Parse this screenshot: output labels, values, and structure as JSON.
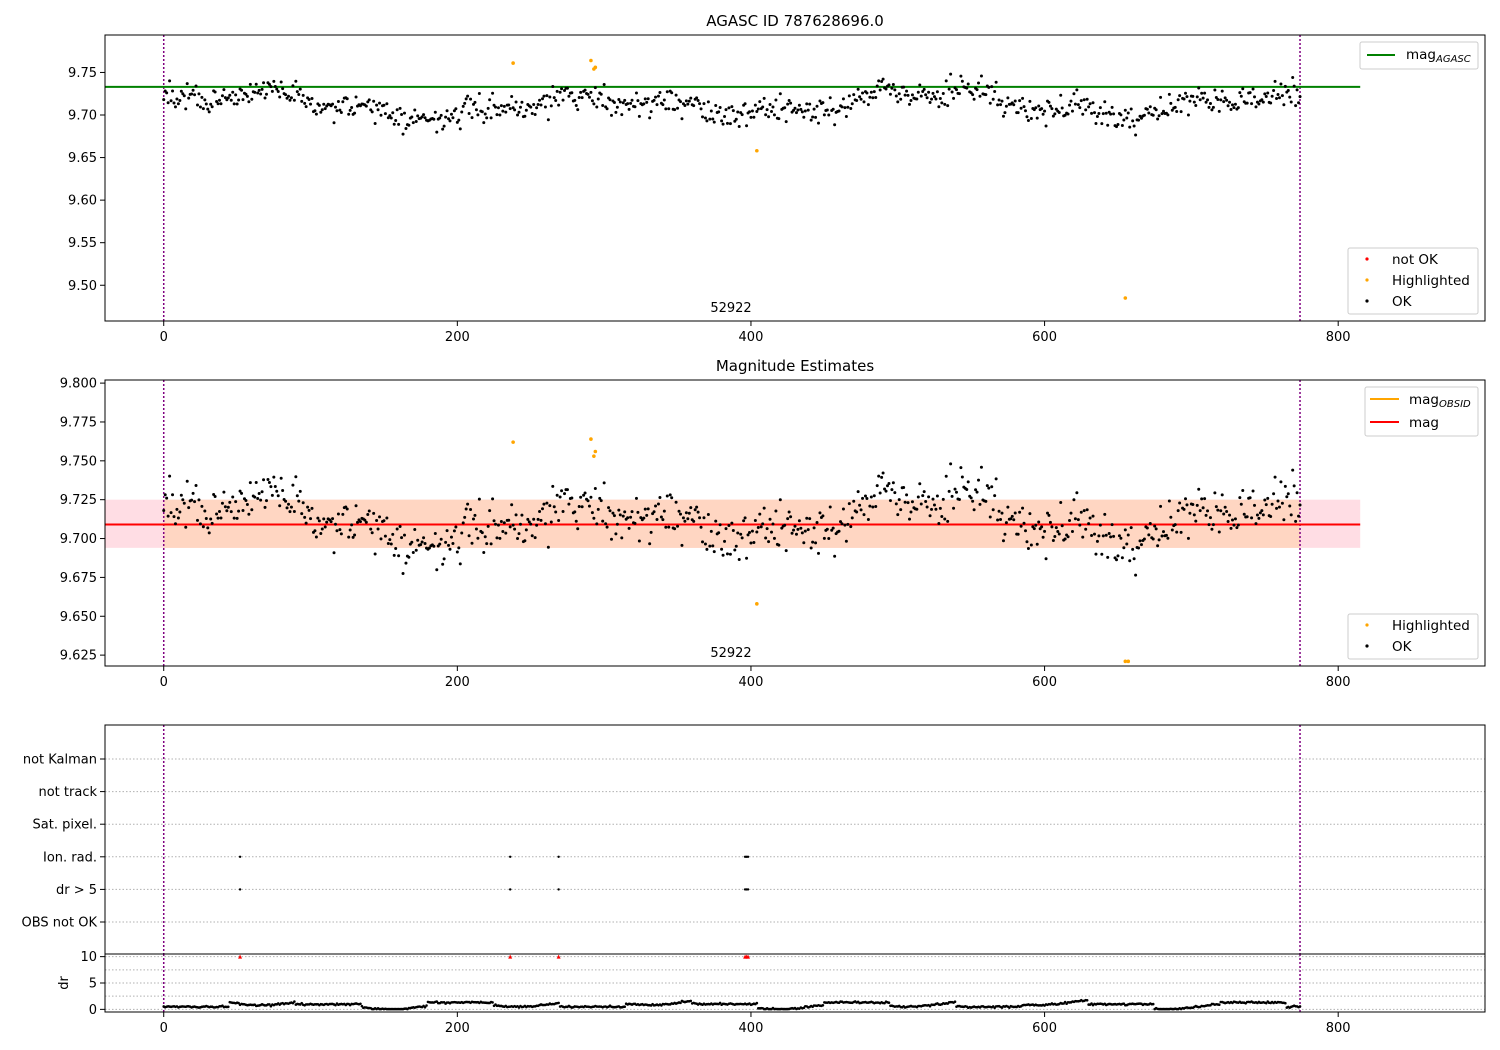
{
  "colors": {
    "ok": "#000000",
    "highlighted": "#ffa500",
    "not_ok": "#ff0000",
    "agasc_line": "#008000",
    "mag_line": "#ff0000",
    "obsid_line": "#ffa500",
    "band_outer": "#ffdde4",
    "band_inner": "#ffd6c2",
    "vline": "#800080"
  },
  "chart_data": [
    {
      "id": "agasc",
      "type": "scatter",
      "title": "AGASC ID 787628696.0",
      "xlim": [
        -40,
        900
      ],
      "ylim": [
        9.458,
        9.794
      ],
      "x_ticks": [
        0,
        200,
        400,
        600,
        800
      ],
      "y_ticks": [
        9.5,
        9.55,
        9.6,
        9.65,
        9.7,
        9.75
      ],
      "y_tick_labels": [
        "9.50",
        "9.55",
        "9.60",
        "9.65",
        "9.70",
        "9.75"
      ],
      "hline": {
        "y": 9.733,
        "x_range": [
          -40,
          815
        ],
        "label_main": "mag",
        "label_sub": "AGASC"
      },
      "obs_boundaries": [
        0,
        774
      ],
      "obs_label": {
        "x": 386,
        "text": "52922"
      },
      "series_legend": [
        "not OK",
        "Highlighted",
        "OK"
      ],
      "legend_position": [
        "top-right",
        "bottom-right"
      ],
      "highlighted_points": [
        [
          238,
          9.761
        ],
        [
          291,
          9.764
        ],
        [
          293,
          9.754
        ],
        [
          294,
          9.756
        ],
        [
          404,
          9.658
        ],
        [
          655,
          9.485
        ]
      ],
      "ok_points": "approx. 775 samples, index 0-774, values 9.67-9.75 around 9.71"
    },
    {
      "id": "estimates",
      "type": "scatter",
      "title": "Magnitude Estimates",
      "xlim": [
        -40,
        900
      ],
      "ylim": [
        9.618,
        9.802
      ],
      "x_ticks": [
        0,
        200,
        400,
        600,
        800
      ],
      "y_ticks": [
        9.625,
        9.65,
        9.675,
        9.7,
        9.725,
        9.75,
        9.775,
        9.8
      ],
      "y_tick_labels": [
        "9.625",
        "9.650",
        "9.675",
        "9.700",
        "9.725",
        "9.750",
        "9.775",
        "9.800"
      ],
      "mag_line": {
        "y": 9.709,
        "x_range": [
          -40,
          815
        ],
        "label": "mag"
      },
      "band": {
        "y_range": [
          9.694,
          9.725
        ],
        "x_range": [
          -40,
          815
        ]
      },
      "band_inner": {
        "y_range": [
          9.694,
          9.725
        ],
        "x_range": [
          0,
          774
        ]
      },
      "obsid_line": {
        "label_main": "mag",
        "label_sub": "OBSID"
      },
      "obs_boundaries": [
        0,
        774
      ],
      "obs_label": {
        "x": 386,
        "text": "52922"
      },
      "series_legend": [
        "Highlighted",
        "OK"
      ],
      "legend_position": [
        "top-right",
        "bottom-right"
      ],
      "highlighted_points": [
        [
          238,
          9.762
        ],
        [
          291,
          9.764
        ],
        [
          293,
          9.753
        ],
        [
          294,
          9.756
        ],
        [
          404,
          9.658
        ],
        [
          655,
          9.621
        ],
        [
          657,
          9.621
        ]
      ]
    },
    {
      "id": "flags",
      "type": "scatter",
      "xlim": [
        -40,
        900
      ],
      "categories": [
        "not Kalman",
        "not track",
        "Sat. pixel.",
        "Ion. rad.",
        "dr > 5",
        "OBS not OK"
      ],
      "flag_points": [
        {
          "category": "Ion. rad.",
          "x": [
            52,
            236,
            269,
            396,
            397,
            398
          ]
        },
        {
          "category": "dr > 5",
          "x": [
            52,
            236,
            269,
            396,
            397,
            398
          ]
        }
      ],
      "obs_boundaries": [
        0,
        774
      ]
    },
    {
      "id": "dr",
      "type": "scatter",
      "ylabel": "dr",
      "xlim": [
        -40,
        900
      ],
      "ylim": [
        -0.5,
        10.5
      ],
      "x_ticks": [
        0,
        200,
        400,
        600,
        800
      ],
      "y_ticks": [
        0,
        5,
        10
      ],
      "y_tick_labels": [
        "0",
        "5",
        "10"
      ],
      "outlier_markers": [
        [
          52,
          10
        ],
        [
          236,
          10
        ],
        [
          269,
          10
        ],
        [
          396,
          10
        ],
        [
          397,
          10
        ],
        [
          398,
          10
        ]
      ],
      "obs_boundaries": [
        0,
        774
      ]
    }
  ]
}
